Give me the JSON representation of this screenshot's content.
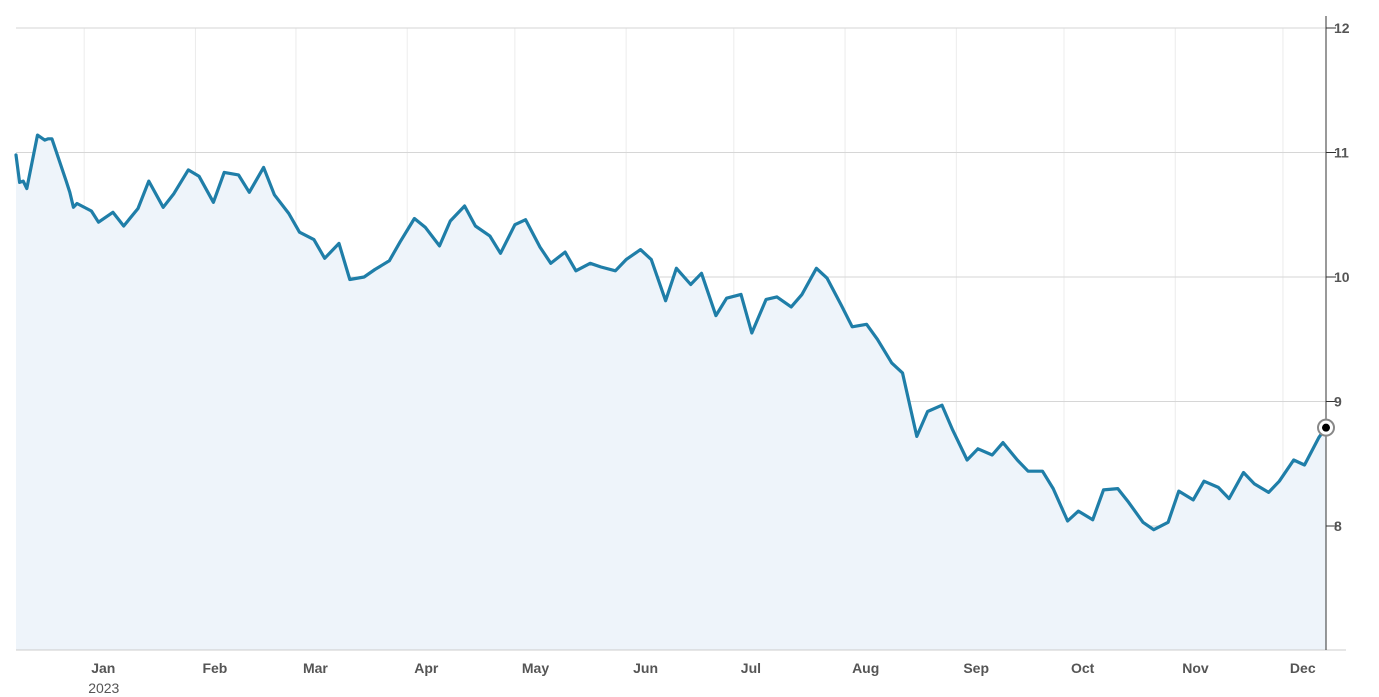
{
  "chart_data": {
    "type": "area",
    "title": "",
    "xlabel": "",
    "ylabel": "",
    "ylim": [
      7.0,
      12.0
    ],
    "y_ticks": [
      8,
      9,
      10,
      11,
      12
    ],
    "y_tick_labels": [
      "8",
      "9",
      "10",
      "11",
      "12"
    ],
    "y_axis_side": "right",
    "x_tick_labels": [
      "Jan",
      "Feb",
      "Mar",
      "Apr",
      "May",
      "Jun",
      "Jul",
      "Aug",
      "Sep",
      "Oct",
      "Nov",
      "Dec"
    ],
    "x_tick_dates": [
      "2023-01-01",
      "2023-02-01",
      "2023-03-01",
      "2023-04-01",
      "2023-05-01",
      "2023-06-01",
      "2023-07-01",
      "2023-08-01",
      "2023-09-01",
      "2023-10-01",
      "2023-11-01",
      "2023-12-01"
    ],
    "year_label": "2023",
    "x_range": [
      "2022-12-13",
      "2023-12-13"
    ],
    "grid": true,
    "line_color": "#1f7ea8",
    "fill_color": "#eef4fa",
    "series": [
      {
        "name": "",
        "x": [
          "2022-12-13",
          "2022-12-14",
          "2022-12-15",
          "2022-12-16",
          "2022-12-19",
          "2022-12-20",
          "2022-12-21",
          "2022-12-22",
          "2022-12-23",
          "2022-12-27",
          "2022-12-28",
          "2022-12-29",
          "2022-12-30",
          "2023-01-03",
          "2023-01-05",
          "2023-01-09",
          "2023-01-12",
          "2023-01-16",
          "2023-01-19",
          "2023-01-23",
          "2023-01-26",
          "2023-01-30",
          "2023-02-02",
          "2023-02-06",
          "2023-02-09",
          "2023-02-13",
          "2023-02-16",
          "2023-02-20",
          "2023-02-23",
          "2023-02-27",
          "2023-03-02",
          "2023-03-06",
          "2023-03-09",
          "2023-03-13",
          "2023-03-16",
          "2023-03-20",
          "2023-03-23",
          "2023-03-27",
          "2023-03-30",
          "2023-04-03",
          "2023-04-06",
          "2023-04-10",
          "2023-04-13",
          "2023-04-17",
          "2023-04-20",
          "2023-04-24",
          "2023-04-27",
          "2023-05-01",
          "2023-05-04",
          "2023-05-08",
          "2023-05-11",
          "2023-05-15",
          "2023-05-18",
          "2023-05-22",
          "2023-05-25",
          "2023-05-29",
          "2023-06-01",
          "2023-06-05",
          "2023-06-08",
          "2023-06-12",
          "2023-06-15",
          "2023-06-19",
          "2023-06-22",
          "2023-06-26",
          "2023-06-29",
          "2023-07-03",
          "2023-07-06",
          "2023-07-10",
          "2023-07-13",
          "2023-07-17",
          "2023-07-20",
          "2023-07-24",
          "2023-07-27",
          "2023-07-31",
          "2023-08-03",
          "2023-08-07",
          "2023-08-10",
          "2023-08-14",
          "2023-08-17",
          "2023-08-21",
          "2023-08-24",
          "2023-08-28",
          "2023-08-31",
          "2023-09-04",
          "2023-09-07",
          "2023-09-11",
          "2023-09-14",
          "2023-09-18",
          "2023-09-21",
          "2023-09-25",
          "2023-09-28",
          "2023-10-02",
          "2023-10-05",
          "2023-10-09",
          "2023-10-12",
          "2023-10-16",
          "2023-10-19",
          "2023-10-23",
          "2023-10-26",
          "2023-10-30",
          "2023-11-02",
          "2023-11-06",
          "2023-11-09",
          "2023-11-13",
          "2023-11-16",
          "2023-11-20",
          "2023-11-23",
          "2023-11-27",
          "2023-11-30",
          "2023-12-04",
          "2023-12-07",
          "2023-12-11",
          "2023-12-13"
        ],
        "values": [
          10.98,
          10.76,
          10.77,
          10.71,
          11.14,
          11.12,
          11.1,
          11.11,
          11.11,
          10.77,
          10.68,
          10.56,
          10.59,
          10.53,
          10.44,
          10.52,
          10.41,
          10.55,
          10.77,
          10.56,
          10.67,
          10.86,
          10.81,
          10.6,
          10.84,
          10.82,
          10.68,
          10.88,
          10.66,
          10.51,
          10.36,
          10.3,
          10.15,
          10.27,
          9.98,
          10.0,
          10.06,
          10.13,
          10.28,
          10.47,
          10.4,
          10.25,
          10.45,
          10.57,
          10.41,
          10.33,
          10.19,
          10.42,
          10.46,
          10.24,
          10.11,
          10.2,
          10.05,
          10.11,
          10.08,
          10.05,
          10.14,
          10.22,
          10.14,
          9.81,
          10.07,
          9.94,
          10.03,
          9.69,
          9.83,
          9.86,
          9.55,
          9.82,
          9.84,
          9.76,
          9.86,
          10.07,
          9.99,
          9.77,
          9.6,
          9.62,
          9.5,
          9.31,
          9.23,
          8.72,
          8.92,
          8.97,
          8.77,
          8.53,
          8.62,
          8.57,
          8.67,
          8.53,
          8.44,
          8.44,
          8.3,
          8.04,
          8.12,
          8.05,
          8.29,
          8.3,
          8.19,
          8.03,
          7.97,
          8.03,
          8.28,
          8.21,
          8.36,
          8.31,
          8.22,
          8.43,
          8.34,
          8.27,
          8.36,
          8.53,
          8.49,
          8.71,
          8.79
        ]
      }
    ],
    "last_value": 8.79
  }
}
